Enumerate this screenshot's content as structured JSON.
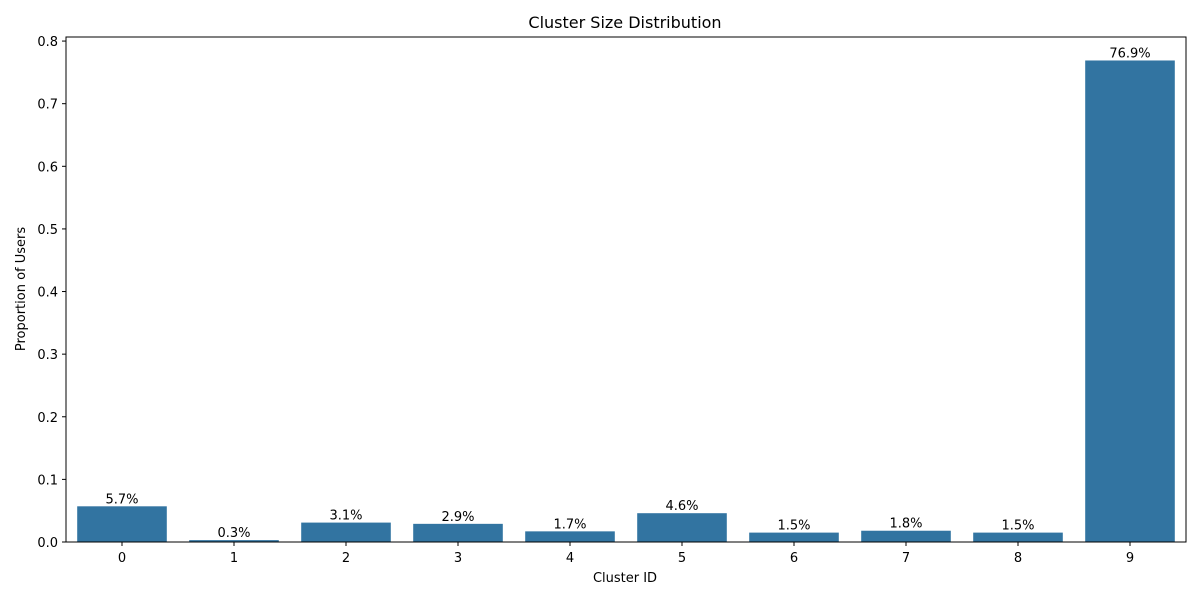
{
  "chart_data": {
    "type": "bar",
    "title": "Cluster Size Distribution",
    "xlabel": "Cluster ID",
    "ylabel": "Proportion of Users",
    "categories": [
      "0",
      "1",
      "2",
      "3",
      "4",
      "5",
      "6",
      "7",
      "8",
      "9"
    ],
    "values": [
      0.057,
      0.003,
      0.031,
      0.029,
      0.017,
      0.046,
      0.015,
      0.018,
      0.015,
      0.769
    ],
    "data_labels": [
      "5.7%",
      "0.3%",
      "3.1%",
      "2.9%",
      "1.7%",
      "4.6%",
      "1.5%",
      "1.8%",
      "1.5%",
      "76.9%"
    ],
    "ylim": [
      0,
      0.8065
    ],
    "yticks": [
      0.0,
      0.1,
      0.2,
      0.3,
      0.4,
      0.5,
      0.6,
      0.7,
      0.8
    ],
    "ytick_labels": [
      "0.0",
      "0.1",
      "0.2",
      "0.3",
      "0.4",
      "0.5",
      "0.6",
      "0.7",
      "0.8"
    ],
    "grid": false,
    "legend": "none",
    "bar_color": "#3274a1"
  }
}
